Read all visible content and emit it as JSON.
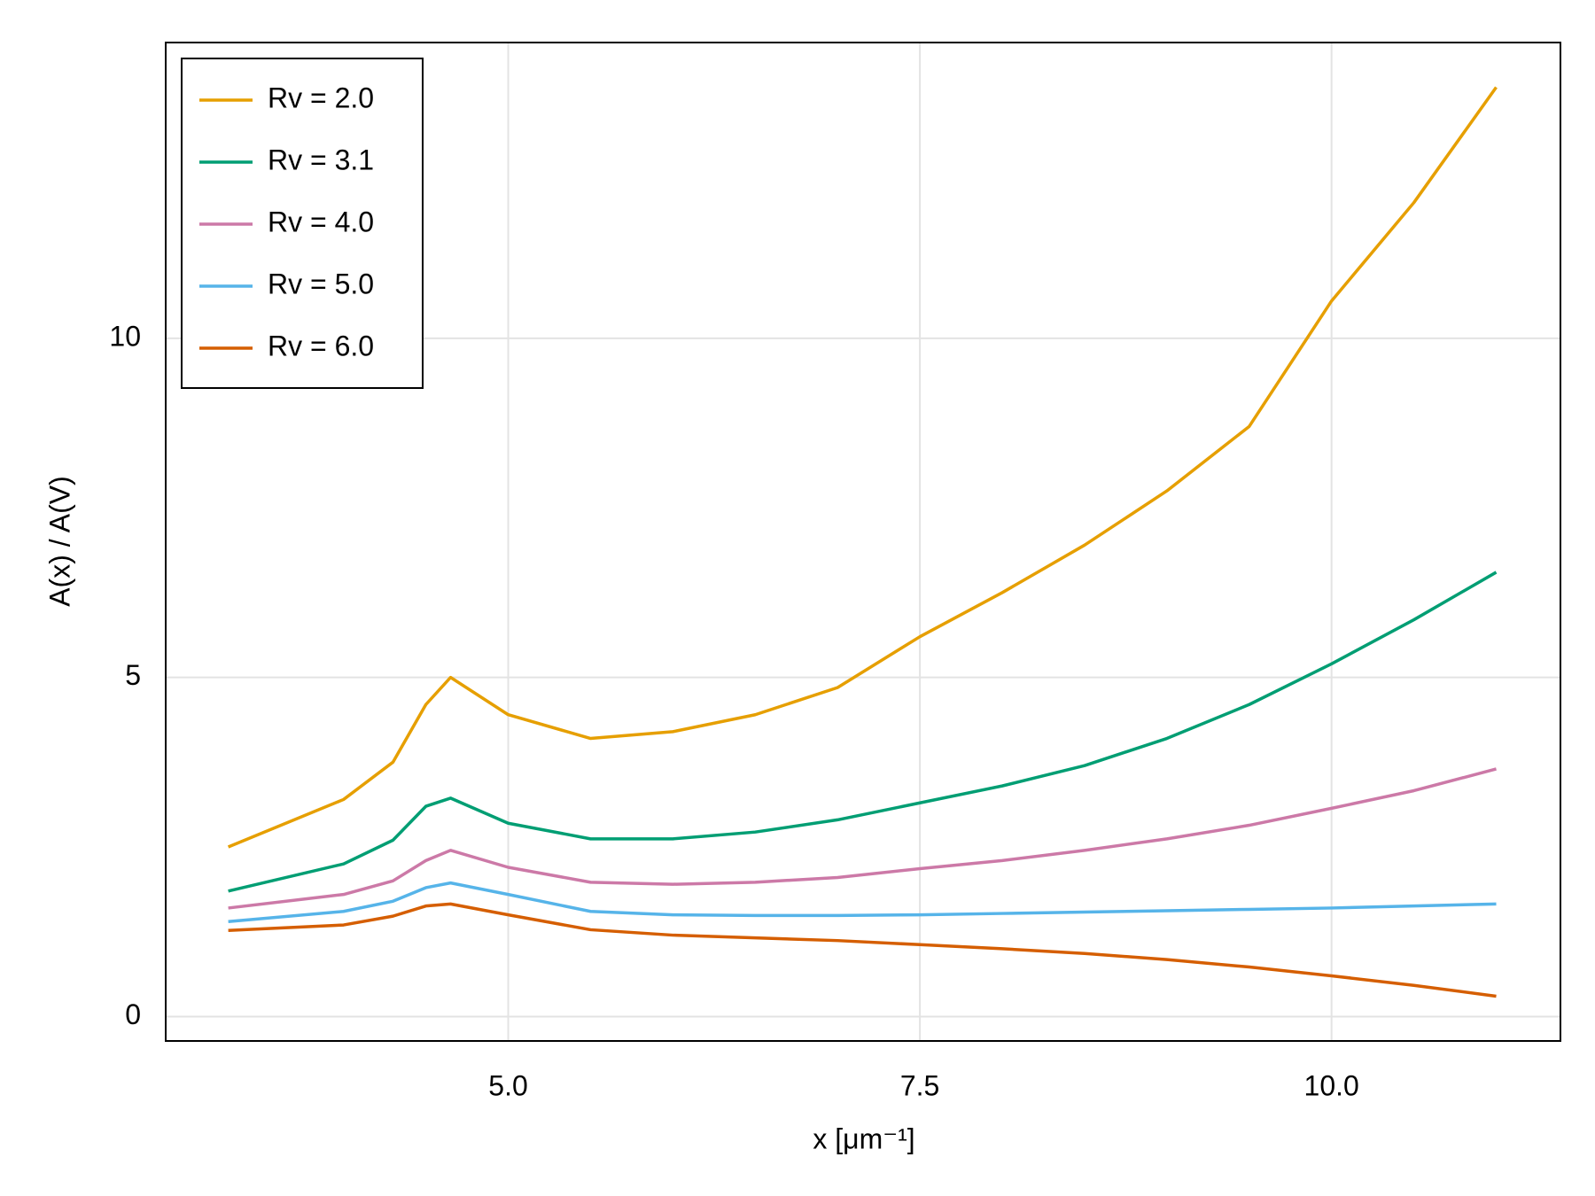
{
  "chart_data": {
    "type": "line",
    "x_label": "x [μm⁻¹]",
    "y_label": "A(x) / A(V)",
    "x": [
      3.3,
      4.0,
      4.3,
      4.5,
      4.65,
      5.0,
      5.5,
      6.0,
      6.5,
      7.0,
      7.5,
      8.0,
      8.5,
      9.0,
      9.5,
      10.0,
      10.5,
      11.0
    ],
    "series": [
      {
        "name": "Rv = 2.0",
        "color": "#e69f00",
        "values": [
          2.5,
          3.2,
          3.75,
          4.6,
          5.0,
          4.45,
          4.1,
          4.2,
          4.45,
          4.85,
          5.6,
          6.25,
          6.95,
          7.75,
          8.7,
          10.55,
          12.0,
          13.7
        ]
      },
      {
        "name": "Rv = 3.1",
        "color": "#009e73",
        "values": [
          1.85,
          2.25,
          2.6,
          3.1,
          3.22,
          2.85,
          2.62,
          2.62,
          2.72,
          2.9,
          3.15,
          3.4,
          3.7,
          4.1,
          4.6,
          5.2,
          5.85,
          6.55
        ]
      },
      {
        "name": "Rv = 4.0",
        "color": "#cc79a7",
        "values": [
          1.6,
          1.8,
          2.0,
          2.3,
          2.45,
          2.2,
          1.98,
          1.95,
          1.98,
          2.05,
          2.18,
          2.3,
          2.45,
          2.62,
          2.82,
          3.07,
          3.33,
          3.65
        ]
      },
      {
        "name": "Rv = 5.0",
        "color": "#56b4e9",
        "values": [
          1.4,
          1.55,
          1.7,
          1.9,
          1.97,
          1.8,
          1.55,
          1.5,
          1.49,
          1.49,
          1.5,
          1.52,
          1.54,
          1.56,
          1.58,
          1.6,
          1.63,
          1.66
        ]
      },
      {
        "name": "Rv = 6.0",
        "color": "#d55e00",
        "values": [
          1.27,
          1.35,
          1.48,
          1.63,
          1.66,
          1.5,
          1.28,
          1.2,
          1.16,
          1.12,
          1.06,
          1.0,
          0.93,
          0.84,
          0.73,
          0.6,
          0.46,
          0.3
        ]
      }
    ],
    "xlim": [
      2.92,
      11.39
    ],
    "ylim": [
      -0.36,
      14.36
    ],
    "xticks": [
      {
        "value": 5,
        "label": "5.0"
      },
      {
        "value": 7.5,
        "label": "7.5"
      },
      {
        "value": 10,
        "label": "10.0"
      }
    ],
    "yticks": [
      0,
      5,
      10
    ],
    "grid": true,
    "legend": "upper left"
  }
}
